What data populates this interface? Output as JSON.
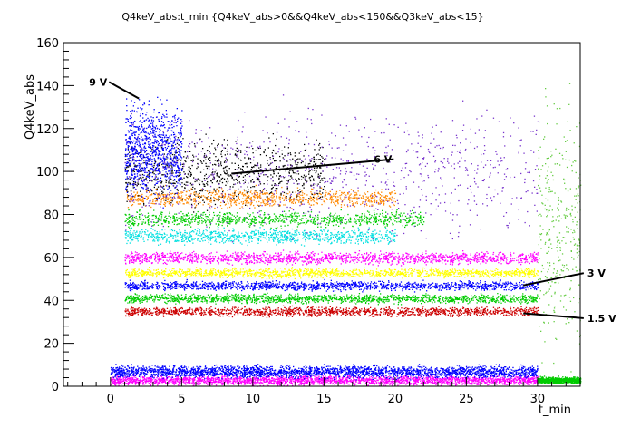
{
  "chart_data": {
    "type": "scatter",
    "title": "Q4keV_abs:t_min {Q4keV_abs>0&&Q4keV_abs<150&&Q3keV_abs<15}",
    "xlabel": "t_min",
    "ylabel": "Q4keV_abs",
    "xlim": [
      -3.3,
      33
    ],
    "ylim": [
      0,
      160
    ],
    "x_ticks": [
      0,
      5,
      10,
      15,
      20,
      25,
      30
    ],
    "y_ticks": [
      0,
      20,
      40,
      60,
      80,
      100,
      120,
      140,
      160
    ],
    "grid": false,
    "colors": {
      "black": "#000000",
      "blue": "#0000ff",
      "magenta": "#ff00ff",
      "green": "#00cc00",
      "lightgreen": "#66cc44",
      "red": "#cc0000",
      "yellow": "#ffff00",
      "cyan": "#00e0e0",
      "purple": "#7733cc",
      "orange": "#ff8800"
    },
    "series": [
      {
        "color": "magenta",
        "x_range": [
          0,
          30
        ],
        "y_center": 3,
        "y_spread": 3,
        "density": "very high"
      },
      {
        "color": "blue",
        "x_range": [
          0,
          30
        ],
        "y_center": 7,
        "y_spread": 4,
        "density": "very high"
      },
      {
        "color": "green",
        "x_range": [
          30,
          33
        ],
        "y_center": 3,
        "y_spread": 2,
        "density": "medium"
      },
      {
        "color": "lightgreen",
        "x_range": [
          30,
          33
        ],
        "y_center": 70,
        "y_spread": 80,
        "density": "sparse"
      },
      {
        "color": "red",
        "x_range": [
          1,
          30
        ],
        "y_center": 35,
        "y_spread": 3,
        "density": "high"
      },
      {
        "color": "green",
        "x_range": [
          1,
          30
        ],
        "y_center": 41,
        "y_spread": 3,
        "density": "high"
      },
      {
        "color": "blue",
        "x_range": [
          1,
          30
        ],
        "y_center": 47,
        "y_spread": 3,
        "density": "high"
      },
      {
        "color": "yellow",
        "x_range": [
          1,
          30
        ],
        "y_center": 53,
        "y_spread": 3,
        "density": "high"
      },
      {
        "color": "magenta",
        "x_range": [
          1,
          30
        ],
        "y_center": 60,
        "y_spread": 4,
        "density": "high"
      },
      {
        "color": "cyan",
        "x_range": [
          1,
          20
        ],
        "y_center": 70,
        "y_spread": 5,
        "density": "medium"
      },
      {
        "color": "green",
        "x_range": [
          1,
          22
        ],
        "y_center": 78,
        "y_spread": 5,
        "density": "medium"
      },
      {
        "color": "orange",
        "x_range": [
          1,
          20
        ],
        "y_center": 88,
        "y_spread": 6,
        "density": "medium"
      },
      {
        "color": "black",
        "x_range": [
          1,
          15
        ],
        "y_center": 100,
        "y_spread": 20,
        "density": "medium"
      },
      {
        "color": "purple",
        "x_range": [
          1,
          30
        ],
        "y_center": 100,
        "y_spread": 40,
        "density": "medium"
      },
      {
        "color": "blue",
        "x_range": [
          1,
          5
        ],
        "y_center": 110,
        "y_spread": 30,
        "density": "medium"
      }
    ],
    "annotations": [
      {
        "text": "9 V",
        "label_at": [
          -1.5,
          140
        ],
        "points_to": [
          2,
          134
        ]
      },
      {
        "text": "6 V",
        "label_at": [
          18.5,
          104
        ],
        "points_to": [
          8.5,
          99
        ]
      },
      {
        "text": "3 V",
        "label_at": [
          33.5,
          51
        ],
        "points_to": [
          29,
          47
        ]
      },
      {
        "text": "1.5 V",
        "label_at": [
          33.5,
          30
        ],
        "points_to": [
          29,
          34
        ]
      }
    ]
  }
}
